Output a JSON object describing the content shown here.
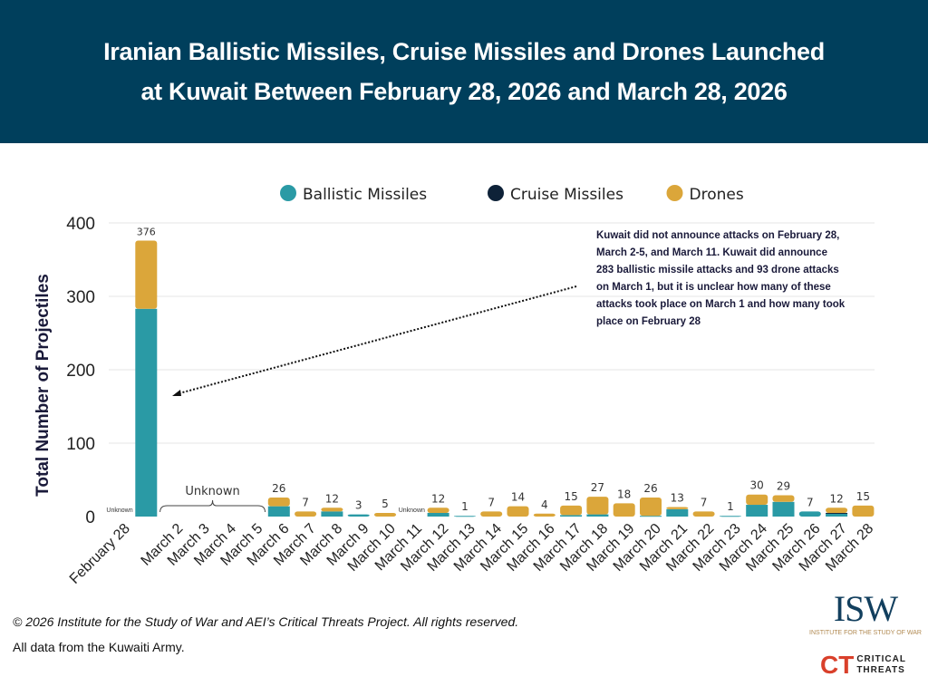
{
  "title_lines": [
    "Iranian Ballistic Missiles, Cruise Missiles and Drones Launched",
    "at Kuwait Between February 28, 2026 and March 28, 2026"
  ],
  "footer": {
    "copyright": "© 2026 Institute for the Study of War and AEI’s Critical Threats Project. All rights reserved.",
    "source": "All data from the Kuwaiti Army."
  },
  "logos": {
    "isw": "ISW",
    "isw_sub": "INSTITUTE FOR THE STUDY OF WAR",
    "ct": "CT",
    "ct_text": [
      "CRITICAL",
      "THREATS"
    ]
  },
  "chart_data": {
    "type": "bar",
    "stacked": true,
    "ylabel": "Total Number of Projectiles",
    "ylim": [
      0,
      400
    ],
    "yticks": [
      0,
      100,
      200,
      300,
      400
    ],
    "grid": true,
    "legend": "top",
    "series_colors": {
      "Ballistic Missiles": "#2a9aa5",
      "Cruise Missiles": "#0e2238",
      "Drones": "#dba63a"
    },
    "categories": [
      "February 28",
      "",
      "March 2",
      "March 3",
      "March 4",
      "March 5",
      "March 6",
      "March 7",
      "March 8",
      "March 9",
      "March 10",
      "March 11",
      "March 12",
      "March 13",
      "March 14",
      "March 15",
      "March 16",
      "March 17",
      "March 18",
      "March 19",
      "March 20",
      "March 21",
      "March 22",
      "March 23",
      "March 24",
      "March 25",
      "March 26",
      "March 27",
      "March 28"
    ],
    "series": [
      {
        "name": "Ballistic Missiles",
        "values": [
          null,
          283,
          null,
          null,
          null,
          null,
          14,
          0,
          7,
          3,
          0,
          null,
          5,
          1,
          0,
          0,
          0,
          2,
          3,
          0,
          1,
          10,
          0,
          1,
          16,
          20,
          7,
          4,
          0
        ]
      },
      {
        "name": "Cruise Missiles",
        "values": [
          null,
          0,
          null,
          null,
          null,
          null,
          0,
          0,
          0,
          0,
          0,
          null,
          0,
          0,
          0,
          0,
          0,
          0,
          0,
          0,
          0,
          0,
          0,
          0,
          0,
          0,
          0,
          1,
          0
        ]
      },
      {
        "name": "Drones",
        "values": [
          null,
          93,
          null,
          null,
          null,
          null,
          12,
          7,
          5,
          0,
          5,
          null,
          7,
          0,
          7,
          14,
          4,
          13,
          24,
          18,
          25,
          3,
          7,
          0,
          14,
          9,
          0,
          7,
          15
        ]
      }
    ],
    "totals": [
      "",
      "376",
      "",
      "",
      "",
      "",
      "26",
      "7",
      "12",
      "3",
      "5",
      "",
      "12",
      "1",
      "7",
      "14",
      "4",
      "15",
      "27",
      "18",
      "26",
      "13",
      "7",
      "1",
      "30",
      "29",
      "7",
      "12",
      "15"
    ],
    "annotations": {
      "unknown": "Unknown",
      "note": "Kuwait did not announce attacks on February 28, March 2-5, and March 11. Kuwait did announce 283 ballistic missile attacks and 93 drone attacks on March 1, but it is unclear how many of these attacks took place on March 1 and how many took place on February 28"
    }
  }
}
